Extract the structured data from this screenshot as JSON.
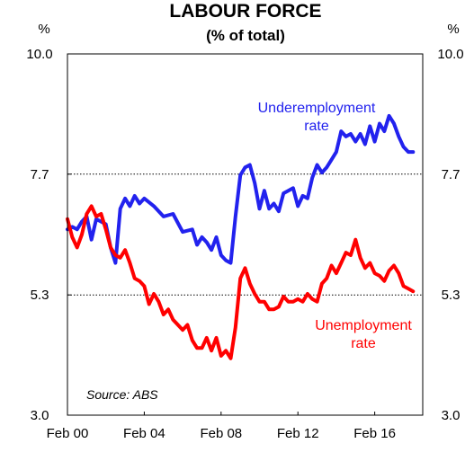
{
  "chart_data": {
    "type": "line",
    "title": "LABOUR FORCE",
    "subtitle": "(% of total)",
    "ylabel_left": "%",
    "ylabel_right": "%",
    "ylim": [
      3.0,
      10.0
    ],
    "y_ticks": [
      "3.0",
      "5.3",
      "7.7",
      "10.0"
    ],
    "y_tick_values": [
      3.0,
      5.33,
      7.67,
      10.0
    ],
    "xlim": [
      2000.0,
      2018.5
    ],
    "x_ticks": [
      "Feb 00",
      "Feb 04",
      "Feb 08",
      "Feb 12",
      "Feb 16"
    ],
    "x_tick_values": [
      2000.0,
      2004.0,
      2008.0,
      2012.0,
      2016.0
    ],
    "gridlines": [
      5.33,
      7.67
    ],
    "grid_style": "dotted",
    "source": "Source: ABS",
    "series": [
      {
        "name": "Underemployment rate",
        "label_lines": [
          "Underemployment",
          "rate"
        ],
        "color": "#2222ee",
        "x": [
          2000.0,
          2000.25,
          2000.5,
          2000.75,
          2001.0,
          2001.25,
          2001.5,
          2001.75,
          2002.0,
          2002.25,
          2002.5,
          2002.75,
          2003.0,
          2003.25,
          2003.5,
          2003.75,
          2004.0,
          2004.5,
          2005.0,
          2005.5,
          2006.0,
          2006.5,
          2006.75,
          2007.0,
          2007.25,
          2007.5,
          2007.75,
          2008.0,
          2008.25,
          2008.5,
          2008.75,
          2009.0,
          2009.25,
          2009.5,
          2009.75,
          2010.0,
          2010.25,
          2010.5,
          2010.75,
          2011.0,
          2011.25,
          2011.5,
          2011.75,
          2012.0,
          2012.25,
          2012.5,
          2012.75,
          2013.0,
          2013.25,
          2013.5,
          2013.75,
          2014.0,
          2014.25,
          2014.5,
          2014.75,
          2015.0,
          2015.25,
          2015.5,
          2015.75,
          2016.0,
          2016.25,
          2016.5,
          2016.75,
          2017.0,
          2017.25,
          2017.5,
          2017.75,
          2018.0
        ],
        "y": [
          6.6,
          6.65,
          6.6,
          6.75,
          6.85,
          6.4,
          6.8,
          6.75,
          6.7,
          6.25,
          5.95,
          7.0,
          7.2,
          7.05,
          7.25,
          7.1,
          7.2,
          7.05,
          6.85,
          6.9,
          6.55,
          6.6,
          6.3,
          6.45,
          6.35,
          6.2,
          6.45,
          6.1,
          6.0,
          5.95,
          6.85,
          7.65,
          7.8,
          7.85,
          7.5,
          7.0,
          7.35,
          7.0,
          7.1,
          6.95,
          7.3,
          7.35,
          7.4,
          7.05,
          7.25,
          7.2,
          7.6,
          7.85,
          7.7,
          7.8,
          7.95,
          8.1,
          8.5,
          8.4,
          8.45,
          8.3,
          8.45,
          8.25,
          8.6,
          8.3,
          8.65,
          8.5,
          8.8,
          8.65,
          8.4,
          8.2,
          8.1,
          8.1
        ],
        "label_position": "upper-right"
      },
      {
        "name": "Unemployment rate",
        "label_lines": [
          "Unemployment",
          "rate"
        ],
        "color": "#ff0000",
        "x": [
          2000.0,
          2000.25,
          2000.5,
          2000.75,
          2001.0,
          2001.25,
          2001.5,
          2001.75,
          2002.0,
          2002.25,
          2002.5,
          2002.75,
          2003.0,
          2003.25,
          2003.5,
          2003.75,
          2004.0,
          2004.25,
          2004.5,
          2004.75,
          2005.0,
          2005.25,
          2005.5,
          2005.75,
          2006.0,
          2006.25,
          2006.5,
          2006.75,
          2007.0,
          2007.25,
          2007.5,
          2007.75,
          2008.0,
          2008.25,
          2008.5,
          2008.75,
          2009.0,
          2009.25,
          2009.5,
          2009.75,
          2010.0,
          2010.25,
          2010.5,
          2010.75,
          2011.0,
          2011.25,
          2011.5,
          2011.75,
          2012.0,
          2012.25,
          2012.5,
          2012.75,
          2013.0,
          2013.25,
          2013.5,
          2013.75,
          2014.0,
          2014.25,
          2014.5,
          2014.75,
          2015.0,
          2015.25,
          2015.5,
          2015.75,
          2016.0,
          2016.25,
          2016.5,
          2016.75,
          2017.0,
          2017.25,
          2017.5,
          2017.75,
          2018.0
        ],
        "y": [
          6.8,
          6.45,
          6.25,
          6.5,
          6.9,
          7.05,
          6.85,
          6.9,
          6.6,
          6.25,
          6.1,
          6.05,
          6.2,
          5.95,
          5.65,
          5.6,
          5.5,
          5.15,
          5.35,
          5.2,
          4.95,
          5.05,
          4.85,
          4.75,
          4.65,
          4.75,
          4.45,
          4.3,
          4.3,
          4.5,
          4.25,
          4.5,
          4.15,
          4.25,
          4.1,
          4.7,
          5.65,
          5.85,
          5.55,
          5.35,
          5.2,
          5.2,
          5.05,
          5.05,
          5.1,
          5.3,
          5.2,
          5.2,
          5.25,
          5.2,
          5.35,
          5.25,
          5.2,
          5.55,
          5.65,
          5.9,
          5.75,
          5.95,
          6.15,
          6.1,
          6.4,
          6.05,
          5.85,
          5.95,
          5.75,
          5.7,
          5.6,
          5.8,
          5.9,
          5.75,
          5.5,
          5.45,
          5.4
        ],
        "label_position": "lower-right"
      }
    ]
  }
}
